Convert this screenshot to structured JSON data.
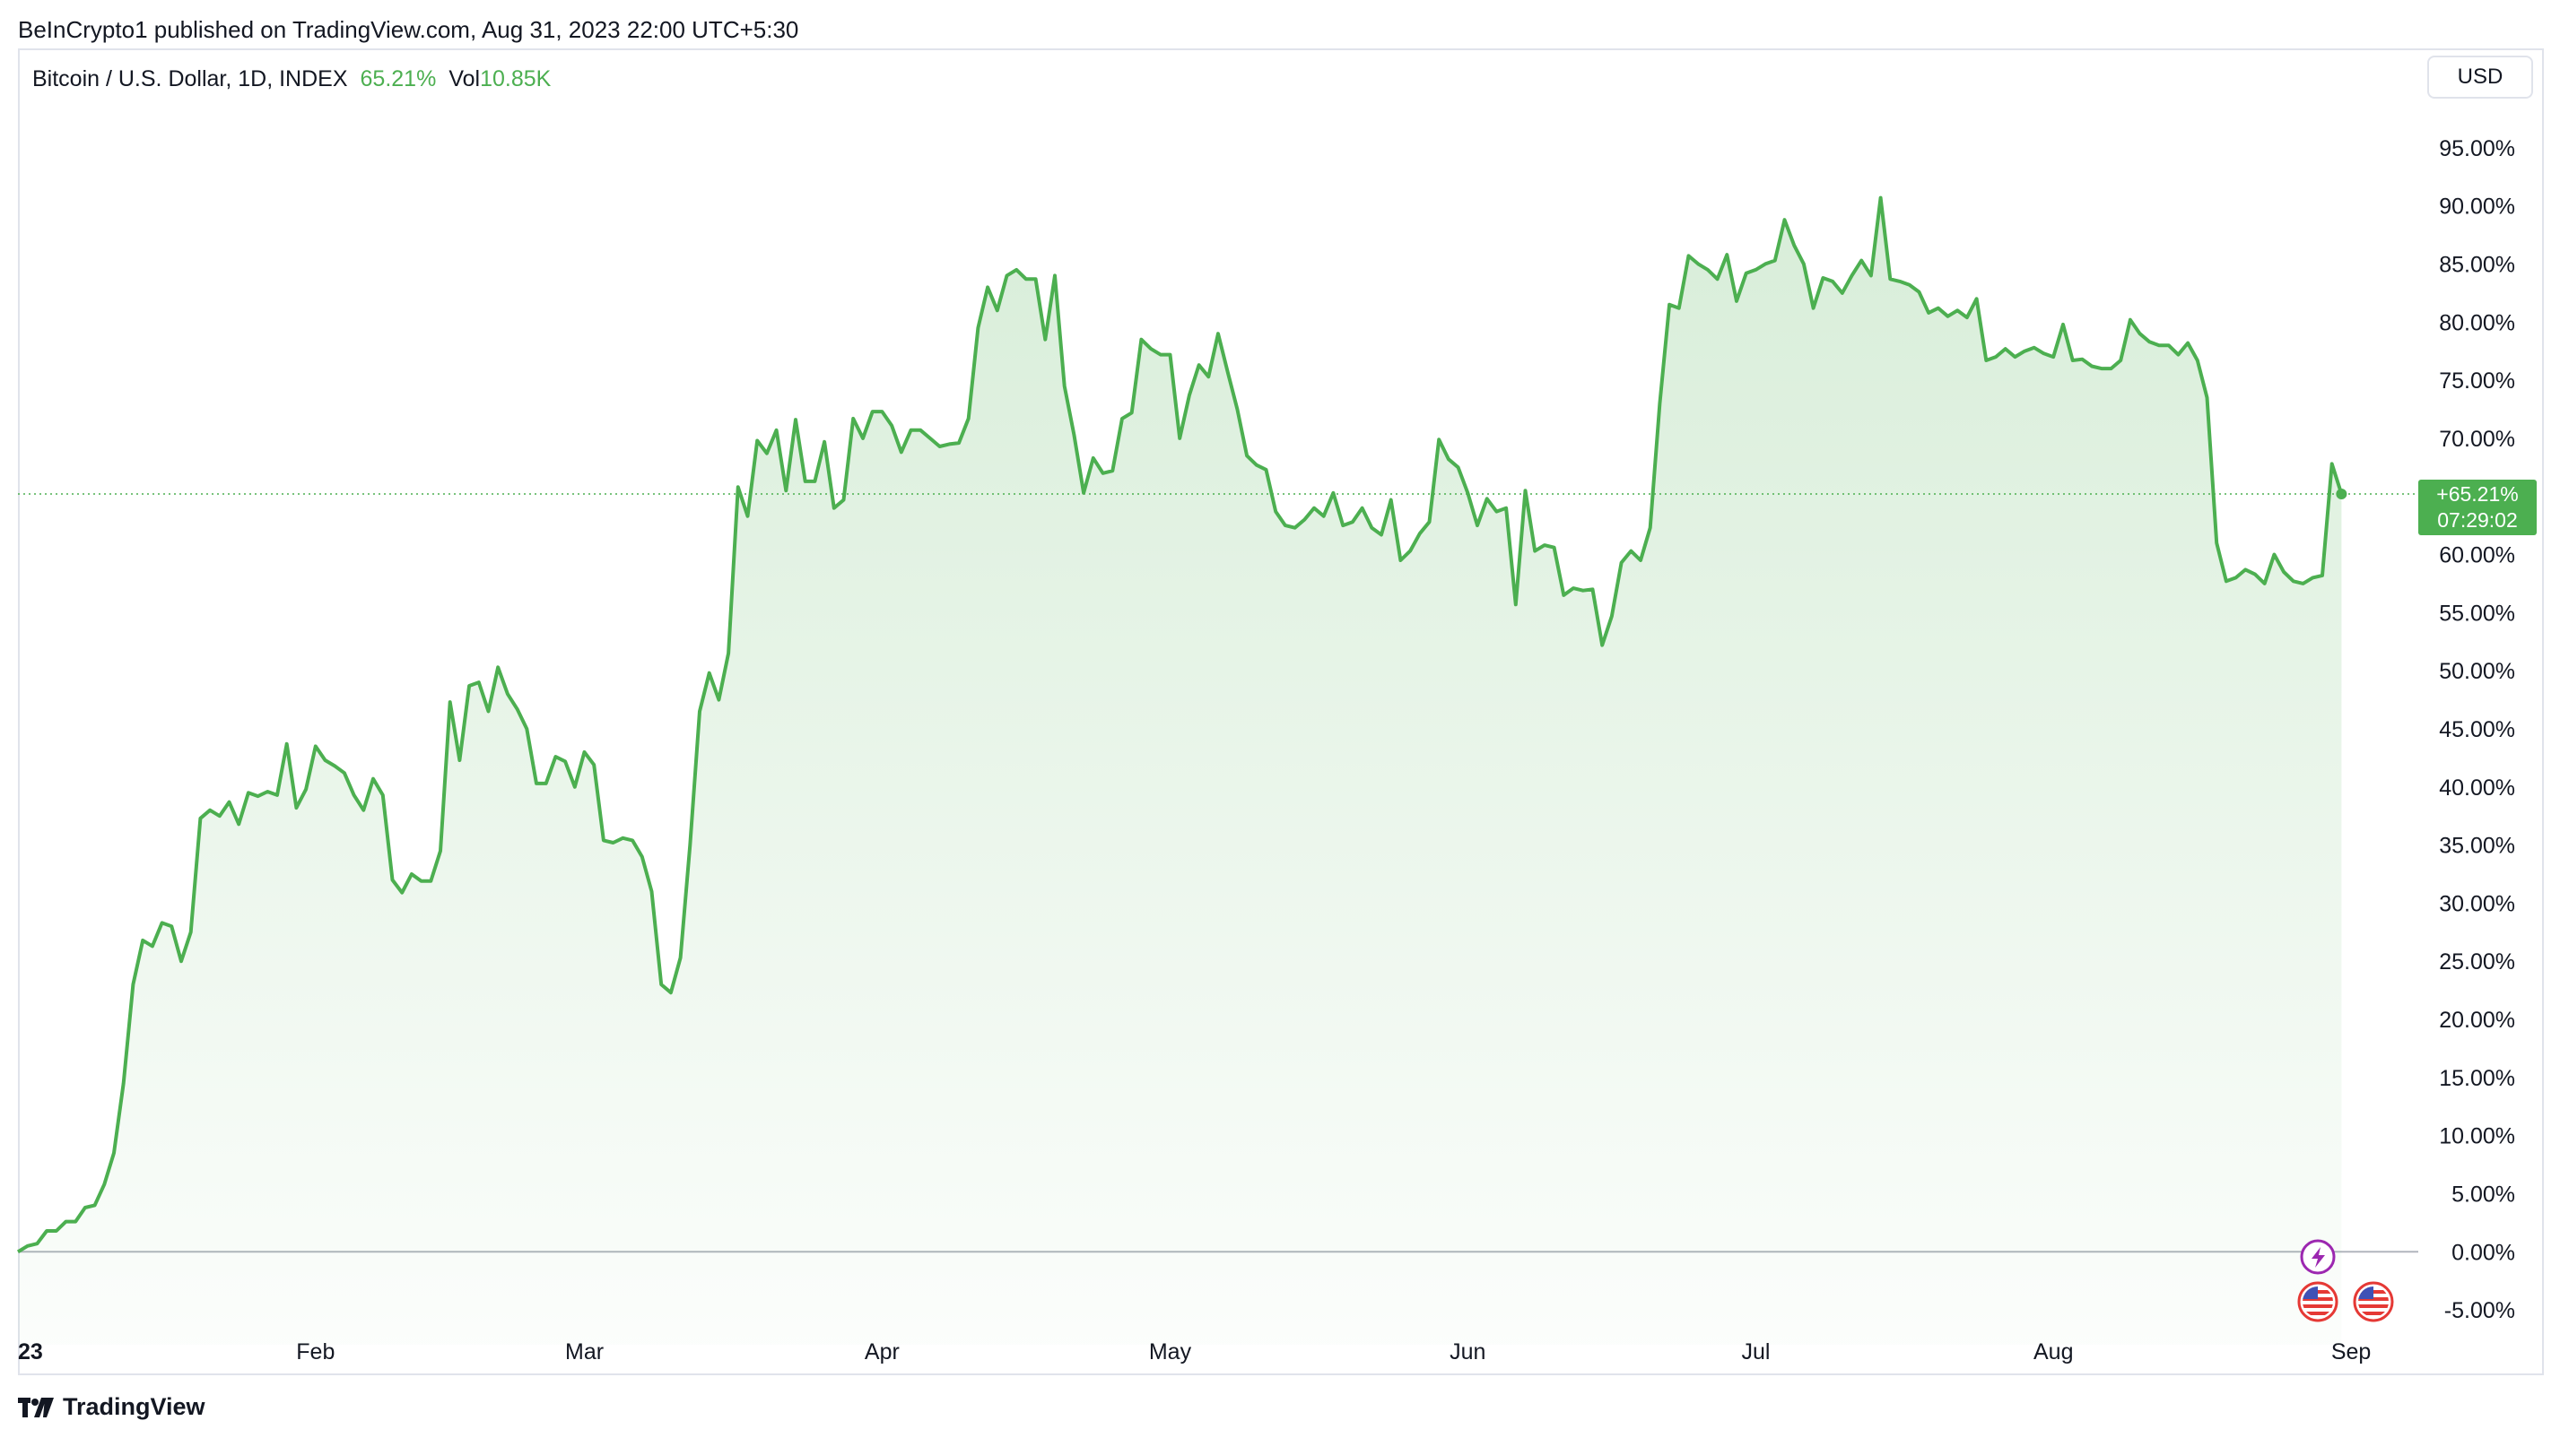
{
  "header": {
    "published": "BeInCrypto1 published on TradingView.com, Aug 31, 2023 22:00 UTC+5:30"
  },
  "legend": {
    "symbol": "Bitcoin / U.S. Dollar, 1D, INDEX",
    "change": "65.21%",
    "vol_label": "Vol",
    "vol_value": "10.85K"
  },
  "currency": "USD",
  "price_label": {
    "value": "+65.21%",
    "countdown": "07:29:02"
  },
  "footer": {
    "brand": "TradingView"
  },
  "colors": {
    "line": "#4caf50",
    "label_bg": "#4caf50",
    "event_icon": "#9c27b0",
    "flag": "#e53935"
  },
  "icons": [
    "lightning-event-icon",
    "us-flag-event-icon",
    "us-flag-event-icon",
    "tradingview-logo-icon"
  ],
  "chart_data": {
    "type": "area",
    "ylabel": "",
    "ylim": [
      -8,
      100
    ],
    "y_ticks": [
      "95.00%",
      "90.00%",
      "85.00%",
      "80.00%",
      "75.00%",
      "70.00%",
      "65.00%",
      "60.00%",
      "55.00%",
      "50.00%",
      "45.00%",
      "40.00%",
      "35.00%",
      "30.00%",
      "25.00%",
      "20.00%",
      "15.00%",
      "10.00%",
      "5.00%",
      "0.00%",
      "-5.00%"
    ],
    "x_ticks": [
      {
        "label": "23",
        "date": "2023-01-01"
      },
      {
        "label": "Feb",
        "date": "2023-02-01"
      },
      {
        "label": "Mar",
        "date": "2023-03-01"
      },
      {
        "label": "Apr",
        "date": "2023-04-01"
      },
      {
        "label": "May",
        "date": "2023-05-01"
      },
      {
        "label": "Jun",
        "date": "2023-06-01"
      },
      {
        "label": "Jul",
        "date": "2023-07-01"
      },
      {
        "label": "Aug",
        "date": "2023-08-01"
      },
      {
        "label": "Sep",
        "date": "2023-09-01"
      }
    ],
    "last_value": 65.21,
    "grid": false,
    "series": [
      {
        "values": [
          [
            "2023-01-01",
            0.0
          ],
          [
            "2023-01-02",
            0.5
          ],
          [
            "2023-01-03",
            0.7
          ],
          [
            "2023-01-04",
            1.8
          ],
          [
            "2023-01-05",
            1.8
          ],
          [
            "2023-01-06",
            2.6
          ],
          [
            "2023-01-07",
            2.6
          ],
          [
            "2023-01-08",
            3.8
          ],
          [
            "2023-01-09",
            4.0
          ],
          [
            "2023-01-10",
            5.8
          ],
          [
            "2023-01-11",
            8.5
          ],
          [
            "2023-01-12",
            14.5
          ],
          [
            "2023-01-13",
            23.0
          ],
          [
            "2023-01-14",
            26.8
          ],
          [
            "2023-01-15",
            26.3
          ],
          [
            "2023-01-16",
            28.3
          ],
          [
            "2023-01-17",
            28.0
          ],
          [
            "2023-01-18",
            25.0
          ],
          [
            "2023-01-19",
            27.5
          ],
          [
            "2023-01-20",
            37.3
          ],
          [
            "2023-01-21",
            38.0
          ],
          [
            "2023-01-22",
            37.5
          ],
          [
            "2023-01-23",
            38.7
          ],
          [
            "2023-01-24",
            36.8
          ],
          [
            "2023-01-25",
            39.5
          ],
          [
            "2023-01-26",
            39.2
          ],
          [
            "2023-01-27",
            39.6
          ],
          [
            "2023-01-28",
            39.3
          ],
          [
            "2023-01-29",
            43.7
          ],
          [
            "2023-01-30",
            38.2
          ],
          [
            "2023-01-31",
            39.8
          ],
          [
            "2023-02-01",
            43.5
          ],
          [
            "2023-02-02",
            42.3
          ],
          [
            "2023-02-03",
            41.8
          ],
          [
            "2023-02-04",
            41.2
          ],
          [
            "2023-02-05",
            39.3
          ],
          [
            "2023-02-06",
            38.0
          ],
          [
            "2023-02-07",
            40.7
          ],
          [
            "2023-02-08",
            39.3
          ],
          [
            "2023-02-09",
            32.0
          ],
          [
            "2023-02-10",
            30.9
          ],
          [
            "2023-02-11",
            32.5
          ],
          [
            "2023-02-12",
            31.9
          ],
          [
            "2023-02-13",
            31.9
          ],
          [
            "2023-02-14",
            34.5
          ],
          [
            "2023-02-15",
            47.3
          ],
          [
            "2023-02-16",
            42.3
          ],
          [
            "2023-02-17",
            48.7
          ],
          [
            "2023-02-18",
            49.0
          ],
          [
            "2023-02-19",
            46.5
          ],
          [
            "2023-02-20",
            50.3
          ],
          [
            "2023-02-21",
            48.0
          ],
          [
            "2023-02-22",
            46.7
          ],
          [
            "2023-02-23",
            45.0
          ],
          [
            "2023-02-24",
            40.3
          ],
          [
            "2023-02-25",
            40.3
          ],
          [
            "2023-02-26",
            42.6
          ],
          [
            "2023-02-27",
            42.2
          ],
          [
            "2023-02-28",
            40.0
          ],
          [
            "2023-03-01",
            43.0
          ],
          [
            "2023-03-02",
            41.9
          ],
          [
            "2023-03-03",
            35.4
          ],
          [
            "2023-03-04",
            35.2
          ],
          [
            "2023-03-05",
            35.6
          ],
          [
            "2023-03-06",
            35.4
          ],
          [
            "2023-03-07",
            34.0
          ],
          [
            "2023-03-08",
            31.0
          ],
          [
            "2023-03-09",
            23.0
          ],
          [
            "2023-03-10",
            22.3
          ],
          [
            "2023-03-11",
            25.3
          ],
          [
            "2023-03-12",
            35.0
          ],
          [
            "2023-03-13",
            46.5
          ],
          [
            "2023-03-14",
            49.8
          ],
          [
            "2023-03-15",
            47.5
          ],
          [
            "2023-03-16",
            51.5
          ],
          [
            "2023-03-17",
            65.8
          ],
          [
            "2023-03-18",
            63.3
          ],
          [
            "2023-03-19",
            69.8
          ],
          [
            "2023-03-20",
            68.7
          ],
          [
            "2023-03-21",
            70.7
          ],
          [
            "2023-03-22",
            65.5
          ],
          [
            "2023-03-23",
            71.6
          ],
          [
            "2023-03-24",
            66.3
          ],
          [
            "2023-03-25",
            66.3
          ],
          [
            "2023-03-26",
            69.7
          ],
          [
            "2023-03-27",
            64.0
          ],
          [
            "2023-03-28",
            64.7
          ],
          [
            "2023-03-29",
            71.7
          ],
          [
            "2023-03-30",
            70.0
          ],
          [
            "2023-03-31",
            72.3
          ],
          [
            "2023-04-01",
            72.3
          ],
          [
            "2023-04-02",
            71.1
          ],
          [
            "2023-04-03",
            68.8
          ],
          [
            "2023-04-04",
            70.7
          ],
          [
            "2023-04-05",
            70.7
          ],
          [
            "2023-04-06",
            70.0
          ],
          [
            "2023-04-07",
            69.3
          ],
          [
            "2023-04-08",
            69.5
          ],
          [
            "2023-04-09",
            69.6
          ],
          [
            "2023-04-10",
            71.7
          ],
          [
            "2023-04-11",
            79.5
          ],
          [
            "2023-04-12",
            83.0
          ],
          [
            "2023-04-13",
            81.0
          ],
          [
            "2023-04-14",
            84.0
          ],
          [
            "2023-04-15",
            84.5
          ],
          [
            "2023-04-16",
            83.7
          ],
          [
            "2023-04-17",
            83.7
          ],
          [
            "2023-04-18",
            78.5
          ],
          [
            "2023-04-19",
            84.0
          ],
          [
            "2023-04-20",
            74.5
          ],
          [
            "2023-04-21",
            70.3
          ],
          [
            "2023-04-22",
            65.3
          ],
          [
            "2023-04-23",
            68.3
          ],
          [
            "2023-04-24",
            67.0
          ],
          [
            "2023-04-25",
            67.2
          ],
          [
            "2023-04-26",
            71.7
          ],
          [
            "2023-04-27",
            72.2
          ],
          [
            "2023-04-28",
            78.5
          ],
          [
            "2023-04-29",
            77.7
          ],
          [
            "2023-04-30",
            77.2
          ],
          [
            "2023-05-01",
            77.2
          ],
          [
            "2023-05-02",
            70.0
          ],
          [
            "2023-05-03",
            73.7
          ],
          [
            "2023-05-04",
            76.3
          ],
          [
            "2023-05-05",
            75.3
          ],
          [
            "2023-05-06",
            79.0
          ],
          [
            "2023-05-07",
            75.7
          ],
          [
            "2023-05-08",
            72.5
          ],
          [
            "2023-05-09",
            68.5
          ],
          [
            "2023-05-10",
            67.7
          ],
          [
            "2023-05-11",
            67.3
          ],
          [
            "2023-05-12",
            63.7
          ],
          [
            "2023-05-13",
            62.5
          ],
          [
            "2023-05-14",
            62.3
          ],
          [
            "2023-05-15",
            63.0
          ],
          [
            "2023-05-16",
            64.0
          ],
          [
            "2023-05-17",
            63.3
          ],
          [
            "2023-05-18",
            65.3
          ],
          [
            "2023-05-19",
            62.5
          ],
          [
            "2023-05-20",
            62.8
          ],
          [
            "2023-05-21",
            64.0
          ],
          [
            "2023-05-22",
            62.3
          ],
          [
            "2023-05-23",
            61.7
          ],
          [
            "2023-05-24",
            64.7
          ],
          [
            "2023-05-25",
            59.5
          ],
          [
            "2023-05-26",
            60.3
          ],
          [
            "2023-05-27",
            61.8
          ],
          [
            "2023-05-28",
            62.8
          ],
          [
            "2023-05-29",
            69.9
          ],
          [
            "2023-05-30",
            68.2
          ],
          [
            "2023-05-31",
            67.5
          ],
          [
            "2023-06-01",
            65.3
          ],
          [
            "2023-06-02",
            62.5
          ],
          [
            "2023-06-03",
            64.8
          ],
          [
            "2023-06-04",
            63.7
          ],
          [
            "2023-06-05",
            64.0
          ],
          [
            "2023-06-06",
            55.7
          ],
          [
            "2023-06-07",
            65.5
          ],
          [
            "2023-06-08",
            60.3
          ],
          [
            "2023-06-09",
            60.8
          ],
          [
            "2023-06-10",
            60.6
          ],
          [
            "2023-06-11",
            56.5
          ],
          [
            "2023-06-12",
            57.1
          ],
          [
            "2023-06-13",
            56.9
          ],
          [
            "2023-06-14",
            57.0
          ],
          [
            "2023-06-15",
            52.2
          ],
          [
            "2023-06-16",
            54.7
          ],
          [
            "2023-06-17",
            59.3
          ],
          [
            "2023-06-18",
            60.3
          ],
          [
            "2023-06-19",
            59.5
          ],
          [
            "2023-06-20",
            62.3
          ],
          [
            "2023-06-21",
            73.0
          ],
          [
            "2023-06-22",
            81.5
          ],
          [
            "2023-06-23",
            81.2
          ],
          [
            "2023-06-24",
            85.7
          ],
          [
            "2023-06-25",
            85.0
          ],
          [
            "2023-06-26",
            84.5
          ],
          [
            "2023-06-27",
            83.7
          ],
          [
            "2023-06-28",
            85.8
          ],
          [
            "2023-06-29",
            81.8
          ],
          [
            "2023-06-30",
            84.2
          ],
          [
            "2023-07-01",
            84.5
          ],
          [
            "2023-07-02",
            85.0
          ],
          [
            "2023-07-03",
            85.3
          ],
          [
            "2023-07-04",
            88.8
          ],
          [
            "2023-07-05",
            86.6
          ],
          [
            "2023-07-06",
            85.0
          ],
          [
            "2023-07-07",
            81.2
          ],
          [
            "2023-07-08",
            83.8
          ],
          [
            "2023-07-09",
            83.5
          ],
          [
            "2023-07-10",
            82.5
          ],
          [
            "2023-07-11",
            84.0
          ],
          [
            "2023-07-12",
            85.3
          ],
          [
            "2023-07-13",
            84.0
          ],
          [
            "2023-07-14",
            90.7
          ],
          [
            "2023-07-15",
            83.7
          ],
          [
            "2023-07-16",
            83.5
          ],
          [
            "2023-07-17",
            83.2
          ],
          [
            "2023-07-18",
            82.6
          ],
          [
            "2023-07-19",
            80.8
          ],
          [
            "2023-07-20",
            81.2
          ],
          [
            "2023-07-21",
            80.5
          ],
          [
            "2023-07-22",
            81.0
          ],
          [
            "2023-07-23",
            80.4
          ],
          [
            "2023-07-24",
            82.0
          ],
          [
            "2023-07-25",
            76.7
          ],
          [
            "2023-07-26",
            77.0
          ],
          [
            "2023-07-27",
            77.7
          ],
          [
            "2023-07-28",
            77.0
          ],
          [
            "2023-07-29",
            77.5
          ],
          [
            "2023-07-30",
            77.8
          ],
          [
            "2023-07-31",
            77.3
          ],
          [
            "2023-08-01",
            77.0
          ],
          [
            "2023-08-02",
            79.8
          ],
          [
            "2023-08-03",
            76.7
          ],
          [
            "2023-08-04",
            76.8
          ],
          [
            "2023-08-05",
            76.2
          ],
          [
            "2023-08-06",
            76.0
          ],
          [
            "2023-08-07",
            76.0
          ],
          [
            "2023-08-08",
            76.7
          ],
          [
            "2023-08-09",
            80.2
          ],
          [
            "2023-08-10",
            79.0
          ],
          [
            "2023-08-11",
            78.3
          ],
          [
            "2023-08-12",
            78.0
          ],
          [
            "2023-08-13",
            78.0
          ],
          [
            "2023-08-14",
            77.2
          ],
          [
            "2023-08-15",
            78.2
          ],
          [
            "2023-08-16",
            76.7
          ],
          [
            "2023-08-17",
            73.5
          ],
          [
            "2023-08-18",
            61.0
          ],
          [
            "2023-08-19",
            57.7
          ],
          [
            "2023-08-20",
            58.0
          ],
          [
            "2023-08-21",
            58.7
          ],
          [
            "2023-08-22",
            58.3
          ],
          [
            "2023-08-23",
            57.5
          ],
          [
            "2023-08-24",
            60.0
          ],
          [
            "2023-08-25",
            58.5
          ],
          [
            "2023-08-26",
            57.7
          ],
          [
            "2023-08-27",
            57.5
          ],
          [
            "2023-08-28",
            58.0
          ],
          [
            "2023-08-29",
            58.2
          ],
          [
            "2023-08-30",
            67.8
          ],
          [
            "2023-08-31",
            65.21
          ]
        ]
      }
    ]
  }
}
